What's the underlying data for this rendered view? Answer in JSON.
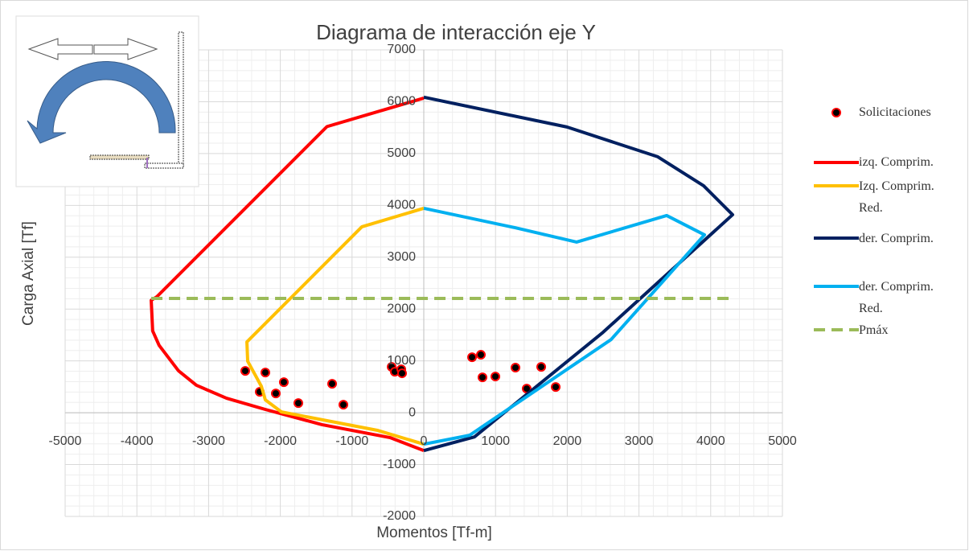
{
  "chart_data": {
    "type": "line",
    "title": "Diagrama de interacción eje Y",
    "x_label": "Momentos [Tf-m]",
    "y_label": "Carga Axial [Tf]",
    "xlim": [
      -5000,
      5000
    ],
    "xticks": [
      -5000,
      -4000,
      -3000,
      -2000,
      -1000,
      0,
      1000,
      2000,
      3000,
      4000,
      5000
    ],
    "ylim": [
      -2000,
      7000
    ],
    "yticks": [
      -2000,
      -1000,
      0,
      1000,
      2000,
      3000,
      4000,
      5000,
      6000,
      7000
    ],
    "grid": true,
    "legend": "right",
    "series": [
      {
        "name": "Solicitaciones",
        "mode": "markers",
        "color": "#ff0000",
        "marker_fill": "#000000",
        "x": [
          -2489,
          -2287,
          -2209,
          -2063,
          -1951,
          -1749,
          -1278,
          -1121,
          -448,
          -404,
          -314,
          -303,
          673,
          796,
          818,
          998,
          1278,
          1435,
          1637,
          1839
        ],
        "values": [
          807,
          404,
          776,
          373,
          590,
          186,
          559,
          155,
          885,
          792,
          838,
          761,
          1071,
          1118,
          683,
          699,
          870,
          466,
          885,
          497
        ]
      },
      {
        "name": "izq. Comprim.",
        "mode": "line",
        "color": "#ff0000",
        "line_style": "solid",
        "x": [
          0,
          -1350,
          -3720,
          -3800,
          -3780,
          -3690,
          -3420,
          -3170,
          -2750,
          -2200,
          -1420,
          -470,
          0
        ],
        "values": [
          6070,
          5520,
          2240,
          2170,
          1580,
          1300,
          810,
          530,
          280,
          60,
          -230,
          -480,
          -730
        ]
      },
      {
        "name": "Izq. Comprim. Red.",
        "mode": "line",
        "color": "#ffc000",
        "line_style": "solid",
        "x": [
          0,
          -863,
          -2466,
          -2455,
          -2265,
          -2209,
          -1984,
          -639,
          0
        ],
        "values": [
          3944,
          3587,
          1366,
          994,
          512,
          248,
          15,
          -342,
          -606
        ]
      },
      {
        "name": "der. Comprim.",
        "mode": "line",
        "color": "#002060",
        "line_style": "solid",
        "x": [
          0,
          1996,
          3262,
          3901,
          4305,
          2500,
          706,
          0
        ],
        "values": [
          6087,
          5512,
          4938,
          4379,
          3820,
          1553,
          -466,
          -730
        ]
      },
      {
        "name": "der. Comprim. Red.",
        "mode": "line",
        "color": "#00b0f0",
        "line_style": "solid",
        "x": [
          0,
          1267,
          2130,
          3386,
          3913,
          2612,
          639,
          0
        ],
        "values": [
          3944,
          3571,
          3292,
          3804,
          3432,
          1413,
          -435,
          -606
        ]
      },
      {
        "name": "Pmáx",
        "mode": "line",
        "color": "#9bbb59",
        "line_style": "dashed",
        "x": [
          -3800,
          4300
        ],
        "values": [
          2205,
          2205
        ]
      }
    ]
  }
}
